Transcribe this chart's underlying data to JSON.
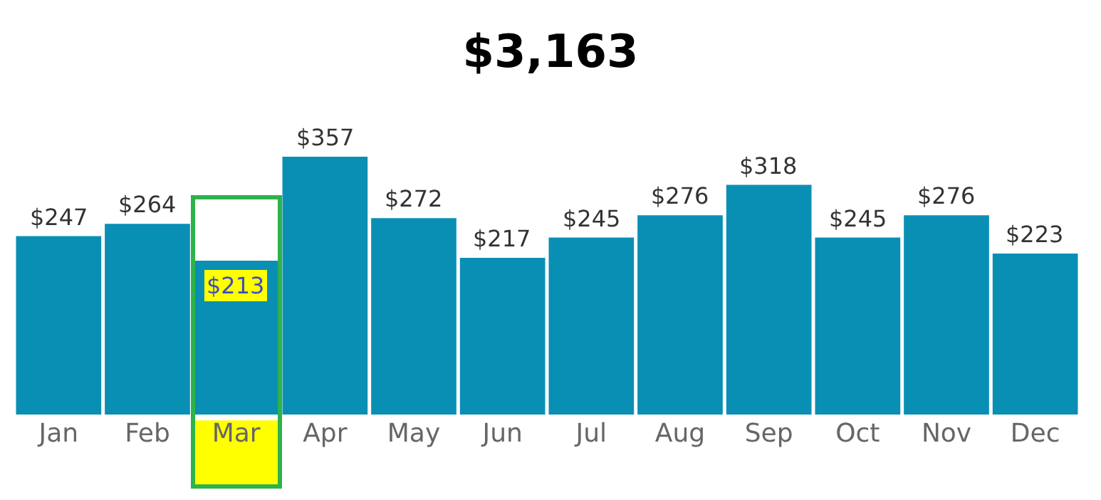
{
  "chart_data": {
    "type": "bar",
    "title": "$3,163",
    "categories": [
      "Jan",
      "Feb",
      "Mar",
      "Apr",
      "May",
      "Jun",
      "Jul",
      "Aug",
      "Sep",
      "Oct",
      "Nov",
      "Dec"
    ],
    "values": [
      247,
      264,
      213,
      357,
      272,
      217,
      245,
      276,
      318,
      245,
      276,
      223
    ],
    "value_labels": [
      "$247",
      "$264",
      "$213",
      "$357",
      "$272",
      "$217",
      "$245",
      "$276",
      "$318",
      "$245",
      "$276",
      "$223"
    ],
    "color": "#0a8fb4",
    "bands": [
      {
        "axis": "x",
        "from": "Mar",
        "to": "Mar",
        "color": "#ffff00"
      }
    ],
    "grid": false,
    "legend": false
  }
}
